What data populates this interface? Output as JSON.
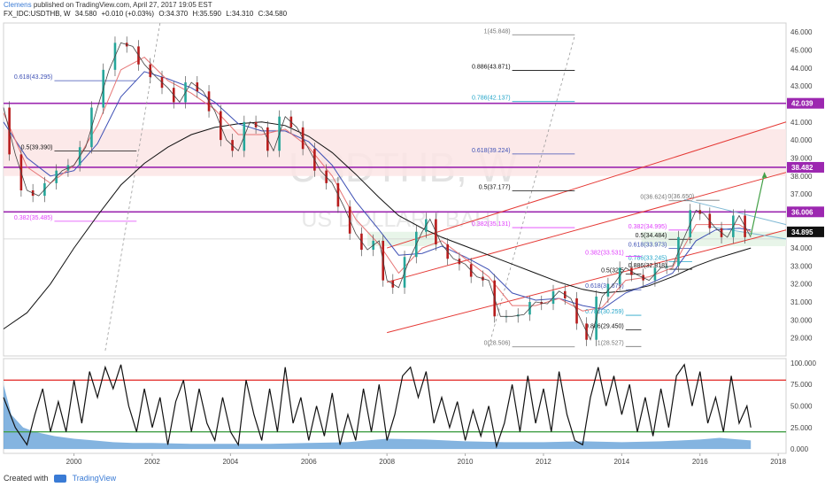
{
  "header": {
    "author": "Clemens",
    "published": "published on TradingView.com, April 27, 2017 19:05 EST",
    "symbol": "FX_IDC:USDTHB, W",
    "last": "34.580",
    "change": "+0.010 (+0.03%)",
    "ohlc": [
      "O:34.370",
      "H:35.590",
      "L:34.310",
      "C:34.580"
    ]
  },
  "watermark": {
    "symbol": "USDTHB, W",
    "name": "US DOLLAR / BAHT"
  },
  "footer": {
    "created_with": "Created with",
    "brand": "TradingView"
  },
  "colors": {
    "hline": "#9c27b0",
    "channel": "#e53935",
    "ema_red": "#e57373",
    "ema_blue": "#3f51b5",
    "sma_black": "#111111",
    "rsi_upper": "#e53935",
    "rsi_lower": "#43a047",
    "volume_area": "#5b9bd5",
    "zone": "#fbe5e5",
    "zone_green": "#e8f5e9"
  },
  "chart_data": {
    "type": "line",
    "x_range": [
      1998.2,
      2018.2
    ],
    "x_ticks": [
      "2000",
      "2002",
      "2004",
      "2006",
      "2008",
      "2010",
      "2012",
      "2014",
      "2016",
      "2018"
    ],
    "price_ylim": [
      28.0,
      46.5
    ],
    "price_ticks": [
      "29.000",
      "30.000",
      "31.000",
      "32.000",
      "33.000",
      "34.000",
      "35.000",
      "36.000",
      "37.000",
      "38.000",
      "39.000",
      "40.000",
      "41.000",
      "42.000",
      "43.000",
      "44.000",
      "45.000",
      "46.000"
    ],
    "rsi_ylim": [
      -5,
      105
    ],
    "rsi_ticks": [
      "0.000",
      "25.000",
      "50.000",
      "75.000",
      "100.000"
    ],
    "price_tags": [
      {
        "label": "42.039",
        "value": 42.039,
        "color": "#9c27b0"
      },
      {
        "label": "38.482",
        "value": 38.482,
        "color": "#9c27b0"
      },
      {
        "label": "36.006",
        "value": 36.006,
        "color": "#9c27b0"
      },
      {
        "label": "34.895",
        "value": 34.895,
        "color": "#111111"
      }
    ],
    "hlines": [
      42.039,
      38.482,
      36.006
    ],
    "zone": [
      38.0,
      40.6
    ],
    "price_series": [
      [
        1998.2,
        41.8
      ],
      [
        1998.5,
        39.2
      ],
      [
        1998.8,
        37.2
      ],
      [
        1999.1,
        36.9
      ],
      [
        1999.4,
        37.6
      ],
      [
        1999.7,
        38.3
      ],
      [
        2000.0,
        38.6
      ],
      [
        2000.3,
        39.6
      ],
      [
        2000.6,
        41.8
      ],
      [
        2000.9,
        43.9
      ],
      [
        2001.2,
        45.4
      ],
      [
        2001.5,
        45.2
      ],
      [
        2001.8,
        44.2
      ],
      [
        2002.1,
        43.5
      ],
      [
        2002.4,
        42.9
      ],
      [
        2002.7,
        42.1
      ],
      [
        2003.0,
        43.2
      ],
      [
        2003.3,
        42.7
      ],
      [
        2003.6,
        41.6
      ],
      [
        2003.9,
        40.0
      ],
      [
        2004.2,
        39.4
      ],
      [
        2004.5,
        41.0
      ],
      [
        2004.8,
        40.7
      ],
      [
        2005.1,
        39.4
      ],
      [
        2005.4,
        41.3
      ],
      [
        2005.7,
        40.7
      ],
      [
        2006.0,
        39.5
      ],
      [
        2006.3,
        38.3
      ],
      [
        2006.6,
        37.6
      ],
      [
        2006.9,
        36.3
      ],
      [
        2007.2,
        34.8
      ],
      [
        2007.5,
        33.9
      ],
      [
        2007.8,
        34.4
      ],
      [
        2008.0,
        32.2
      ],
      [
        2008.3,
        31.8
      ],
      [
        2008.6,
        33.5
      ],
      [
        2008.9,
        34.9
      ],
      [
        2009.1,
        35.6
      ],
      [
        2009.4,
        34.2
      ],
      [
        2009.7,
        33.4
      ],
      [
        2010.0,
        33.1
      ],
      [
        2010.3,
        32.4
      ],
      [
        2010.6,
        32.2
      ],
      [
        2010.9,
        30.2
      ],
      [
        2011.2,
        30.2
      ],
      [
        2011.5,
        30.3
      ],
      [
        2011.8,
        31.0
      ],
      [
        2012.1,
        30.9
      ],
      [
        2012.4,
        31.6
      ],
      [
        2012.7,
        31.2
      ],
      [
        2013.0,
        29.8
      ],
      [
        2013.2,
        28.9
      ],
      [
        2013.5,
        31.3
      ],
      [
        2013.8,
        32.0
      ],
      [
        2014.1,
        32.9
      ],
      [
        2014.4,
        32.5
      ],
      [
        2014.7,
        32.2
      ],
      [
        2015.0,
        32.9
      ],
      [
        2015.3,
        33.0
      ],
      [
        2015.6,
        34.6
      ],
      [
        2015.9,
        36.1
      ],
      [
        2016.1,
        35.9
      ],
      [
        2016.4,
        35.1
      ],
      [
        2016.7,
        34.6
      ],
      [
        2017.0,
        35.8
      ],
      [
        2017.3,
        34.6
      ]
    ],
    "ema_red": [
      [
        1998.2,
        41.5
      ],
      [
        1998.8,
        38.5
      ],
      [
        1999.4,
        37.6
      ],
      [
        2000.0,
        38.6
      ],
      [
        2000.6,
        40.8
      ],
      [
        2001.2,
        43.9
      ],
      [
        2001.8,
        44.6
      ],
      [
        2002.4,
        43.3
      ],
      [
        2003.0,
        42.6
      ],
      [
        2003.6,
        41.7
      ],
      [
        2004.2,
        40.3
      ],
      [
        2004.8,
        40.3
      ],
      [
        2005.4,
        40.6
      ],
      [
        2006.0,
        39.6
      ],
      [
        2006.6,
        38.0
      ],
      [
        2007.2,
        35.6
      ],
      [
        2007.8,
        34.2
      ],
      [
        2008.3,
        32.6
      ],
      [
        2008.9,
        34.0
      ],
      [
        2009.4,
        34.4
      ],
      [
        2010.0,
        33.4
      ],
      [
        2010.6,
        32.4
      ],
      [
        2011.2,
        30.8
      ],
      [
        2011.8,
        30.8
      ],
      [
        2012.4,
        31.2
      ],
      [
        2013.0,
        30.5
      ],
      [
        2013.5,
        30.7
      ],
      [
        2014.1,
        32.2
      ],
      [
        2014.7,
        32.4
      ],
      [
        2015.3,
        32.9
      ],
      [
        2015.9,
        35.3
      ],
      [
        2016.4,
        35.3
      ],
      [
        2017.0,
        35.3
      ],
      [
        2017.3,
        34.9
      ]
    ],
    "ema_blue": [
      [
        1998.2,
        41.0
      ],
      [
        1998.8,
        39.0
      ],
      [
        1999.4,
        38.0
      ],
      [
        2000.0,
        38.3
      ],
      [
        2000.6,
        39.8
      ],
      [
        2001.2,
        42.4
      ],
      [
        2001.8,
        43.8
      ],
      [
        2002.4,
        43.4
      ],
      [
        2003.0,
        42.9
      ],
      [
        2003.6,
        42.1
      ],
      [
        2004.2,
        40.9
      ],
      [
        2004.8,
        40.5
      ],
      [
        2005.4,
        40.5
      ],
      [
        2006.0,
        39.9
      ],
      [
        2006.6,
        38.6
      ],
      [
        2007.2,
        36.6
      ],
      [
        2007.8,
        35.0
      ],
      [
        2008.3,
        33.6
      ],
      [
        2008.9,
        33.7
      ],
      [
        2009.4,
        34.1
      ],
      [
        2010.0,
        33.5
      ],
      [
        2010.6,
        32.8
      ],
      [
        2011.2,
        31.5
      ],
      [
        2011.8,
        31.1
      ],
      [
        2012.4,
        31.2
      ],
      [
        2013.0,
        30.8
      ],
      [
        2013.5,
        30.6
      ],
      [
        2014.1,
        31.5
      ],
      [
        2014.7,
        32.0
      ],
      [
        2015.3,
        32.6
      ],
      [
        2015.9,
        34.4
      ],
      [
        2016.4,
        35.0
      ],
      [
        2017.0,
        35.1
      ],
      [
        2017.3,
        35.0
      ]
    ],
    "sma_black": [
      [
        1998.2,
        29.5
      ],
      [
        1998.8,
        30.4
      ],
      [
        1999.4,
        32.0
      ],
      [
        2000.0,
        34.0
      ],
      [
        2000.6,
        35.8
      ],
      [
        2001.2,
        37.5
      ],
      [
        2001.8,
        38.7
      ],
      [
        2002.4,
        39.6
      ],
      [
        2003.0,
        40.3
      ],
      [
        2003.6,
        40.7
      ],
      [
        2004.2,
        40.9
      ],
      [
        2004.8,
        41.0
      ],
      [
        2005.4,
        40.8
      ],
      [
        2006.0,
        40.2
      ],
      [
        2006.6,
        39.3
      ],
      [
        2007.2,
        38.1
      ],
      [
        2007.8,
        36.8
      ],
      [
        2008.3,
        35.8
      ],
      [
        2008.9,
        35.1
      ],
      [
        2009.4,
        34.6
      ],
      [
        2010.0,
        34.1
      ],
      [
        2010.6,
        33.6
      ],
      [
        2011.2,
        33.1
      ],
      [
        2011.8,
        32.6
      ],
      [
        2012.4,
        32.1
      ],
      [
        2013.0,
        31.7
      ],
      [
        2013.5,
        31.5
      ],
      [
        2014.1,
        31.6
      ],
      [
        2014.7,
        31.9
      ],
      [
        2015.3,
        32.4
      ],
      [
        2015.9,
        33.0
      ],
      [
        2016.4,
        33.4
      ],
      [
        2017.0,
        33.8
      ],
      [
        2017.3,
        34.0
      ]
    ],
    "channel_lines": [
      {
        "from": [
          2008.0,
          34.0
        ],
        "to": [
          2018.2,
          41.0
        ]
      },
      {
        "from": [
          2008.0,
          32.1
        ],
        "to": [
          2018.2,
          38.2
        ]
      },
      {
        "from": [
          2008.0,
          29.3
        ],
        "to": [
          2018.2,
          35.0
        ]
      }
    ],
    "triangle_lines": [
      {
        "from": [
          2015.6,
          36.7
        ],
        "to": [
          2018.2,
          35.3
        ]
      },
      {
        "from": [
          2016.2,
          35.2
        ],
        "to": [
          2018.2,
          34.5
        ]
      }
    ],
    "projection_arrow": {
      "from": [
        2017.3,
        34.7
      ],
      "to": [
        2017.65,
        38.2
      ]
    },
    "fib_sets": [
      {
        "x1": 2011.2,
        "x2": 2012.8,
        "levels": [
          {
            "label": "1(45.848)",
            "value": 45.848,
            "color": "#777777"
          },
          {
            "label": "0.886(43.871)",
            "value": 43.871,
            "color": "#111111"
          },
          {
            "label": "0.786(42.137)",
            "value": 42.137,
            "color": "#26a6c9"
          },
          {
            "label": "0.618(39.224)",
            "value": 39.224,
            "color": "#3f51b5"
          },
          {
            "label": "0.5(37.177)",
            "value": 37.177,
            "color": "#111111"
          },
          {
            "label": "0.382(35.131)",
            "value": 35.131,
            "color": "#e040fb"
          },
          {
            "label": "0(28.506)",
            "value": 28.506,
            "color": "#777777"
          }
        ]
      },
      {
        "x1": 1999.5,
        "x2": 2001.6,
        "levels": [
          {
            "label": "0.618(43.295)",
            "value": 43.295,
            "color": "#3f51b5"
          },
          {
            "label": "0.5(39.390)",
            "value": 39.39,
            "color": "#111111"
          },
          {
            "label": "0.382(35.485)",
            "value": 35.485,
            "color": "#e040fb"
          }
        ]
      },
      {
        "x1": 2015.2,
        "x2": 2015.8,
        "levels": [
          {
            "label": "0(36.624)",
            "value": 36.624,
            "color": "#777777"
          },
          {
            "label": "0.382(34.995)",
            "value": 34.995,
            "color": "#e040fb"
          },
          {
            "label": "0.5(34.484)",
            "value": 34.484,
            "color": "#111111"
          },
          {
            "label": "0.618(33.973)",
            "value": 33.973,
            "color": "#3f51b5"
          },
          {
            "label": "0.786(33.245)",
            "value": 33.245,
            "color": "#26a6c9"
          },
          {
            "label": "0.886(32.818)",
            "value": 32.818,
            "color": "#111111"
          }
        ]
      },
      {
        "x1": 2015.9,
        "x2": 2016.5,
        "levels": [
          {
            "label": "0(36.650)",
            "value": 36.65,
            "color": "#777777"
          }
        ]
      },
      {
        "x1": 2014.1,
        "x2": 2014.5,
        "levels": [
          {
            "label": "0.382(33.531)",
            "value": 33.531,
            "color": "#e040fb"
          },
          {
            "label": "0.5(32.5",
            "value": 32.55,
            "color": "#111111"
          },
          {
            "label": "0.618(31.679)",
            "value": 31.679,
            "color": "#3f51b5"
          },
          {
            "label": "0.786(30.259)",
            "value": 30.259,
            "color": "#26a6c9"
          },
          {
            "label": "0.886(29.450)",
            "value": 29.45,
            "color": "#111111"
          },
          {
            "label": "1(28.527)",
            "value": 28.527,
            "color": "#777777"
          }
        ]
      }
    ],
    "rsi_series": [
      [
        1998.2,
        60
      ],
      [
        1998.5,
        25
      ],
      [
        1998.8,
        5
      ],
      [
        1999.0,
        40
      ],
      [
        1999.2,
        70
      ],
      [
        1999.4,
        20
      ],
      [
        1999.6,
        55
      ],
      [
        1999.8,
        20
      ],
      [
        2000.0,
        80
      ],
      [
        2000.2,
        30
      ],
      [
        2000.4,
        90
      ],
      [
        2000.6,
        60
      ],
      [
        2000.8,
        95
      ],
      [
        2001.0,
        70
      ],
      [
        2001.2,
        98
      ],
      [
        2001.4,
        50
      ],
      [
        2001.6,
        20
      ],
      [
        2001.8,
        70
      ],
      [
        2002.0,
        25
      ],
      [
        2002.2,
        60
      ],
      [
        2002.4,
        5
      ],
      [
        2002.6,
        55
      ],
      [
        2002.8,
        80
      ],
      [
        2003.0,
        20
      ],
      [
        2003.2,
        70
      ],
      [
        2003.4,
        30
      ],
      [
        2003.6,
        10
      ],
      [
        2003.8,
        60
      ],
      [
        2004.0,
        20
      ],
      [
        2004.2,
        5
      ],
      [
        2004.4,
        80
      ],
      [
        2004.6,
        40
      ],
      [
        2004.8,
        10
      ],
      [
        2005.0,
        70
      ],
      [
        2005.2,
        20
      ],
      [
        2005.4,
        95
      ],
      [
        2005.6,
        30
      ],
      [
        2005.8,
        60
      ],
      [
        2006.0,
        10
      ],
      [
        2006.2,
        50
      ],
      [
        2006.4,
        15
      ],
      [
        2006.6,
        65
      ],
      [
        2006.8,
        5
      ],
      [
        2007.0,
        40
      ],
      [
        2007.2,
        10
      ],
      [
        2007.4,
        70
      ],
      [
        2007.6,
        20
      ],
      [
        2007.8,
        75
      ],
      [
        2008.0,
        10
      ],
      [
        2008.2,
        40
      ],
      [
        2008.4,
        85
      ],
      [
        2008.6,
        95
      ],
      [
        2008.8,
        60
      ],
      [
        2009.0,
        90
      ],
      [
        2009.2,
        30
      ],
      [
        2009.4,
        60
      ],
      [
        2009.6,
        25
      ],
      [
        2009.8,
        55
      ],
      [
        2010.0,
        10
      ],
      [
        2010.2,
        45
      ],
      [
        2010.4,
        15
      ],
      [
        2010.6,
        50
      ],
      [
        2010.8,
        3
      ],
      [
        2011.0,
        30
      ],
      [
        2011.2,
        75
      ],
      [
        2011.4,
        20
      ],
      [
        2011.6,
        85
      ],
      [
        2011.8,
        30
      ],
      [
        2012.0,
        70
      ],
      [
        2012.2,
        20
      ],
      [
        2012.4,
        90
      ],
      [
        2012.6,
        40
      ],
      [
        2012.8,
        10
      ],
      [
        2013.0,
        5
      ],
      [
        2013.2,
        60
      ],
      [
        2013.4,
        95
      ],
      [
        2013.6,
        50
      ],
      [
        2013.8,
        85
      ],
      [
        2014.0,
        40
      ],
      [
        2014.2,
        75
      ],
      [
        2014.4,
        20
      ],
      [
        2014.6,
        60
      ],
      [
        2014.8,
        15
      ],
      [
        2015.0,
        70
      ],
      [
        2015.2,
        25
      ],
      [
        2015.4,
        85
      ],
      [
        2015.6,
        98
      ],
      [
        2015.8,
        50
      ],
      [
        2016.0,
        90
      ],
      [
        2016.2,
        30
      ],
      [
        2016.4,
        60
      ],
      [
        2016.6,
        20
      ],
      [
        2016.8,
        85
      ],
      [
        2017.0,
        30
      ],
      [
        2017.2,
        50
      ],
      [
        2017.3,
        25
      ]
    ],
    "volume_area": [
      [
        1998.2,
        75
      ],
      [
        1998.4,
        40
      ],
      [
        1998.7,
        25
      ],
      [
        1999.0,
        20
      ],
      [
        1999.5,
        15
      ],
      [
        2000.0,
        12
      ],
      [
        2000.5,
        10
      ],
      [
        2001.0,
        8
      ],
      [
        2001.5,
        7
      ],
      [
        2002.0,
        7
      ],
      [
        2003.0,
        6
      ],
      [
        2004.0,
        6
      ],
      [
        2005.0,
        6
      ],
      [
        2006.0,
        7
      ],
      [
        2007.0,
        8
      ],
      [
        2007.5,
        10
      ],
      [
        2008.0,
        12
      ],
      [
        2009.0,
        11
      ],
      [
        2010.0,
        9
      ],
      [
        2011.0,
        8
      ],
      [
        2012.0,
        8
      ],
      [
        2013.0,
        9
      ],
      [
        2014.0,
        8
      ],
      [
        2015.0,
        9
      ],
      [
        2016.0,
        11
      ],
      [
        2016.5,
        13
      ],
      [
        2017.0,
        11
      ],
      [
        2017.3,
        10
      ]
    ]
  }
}
